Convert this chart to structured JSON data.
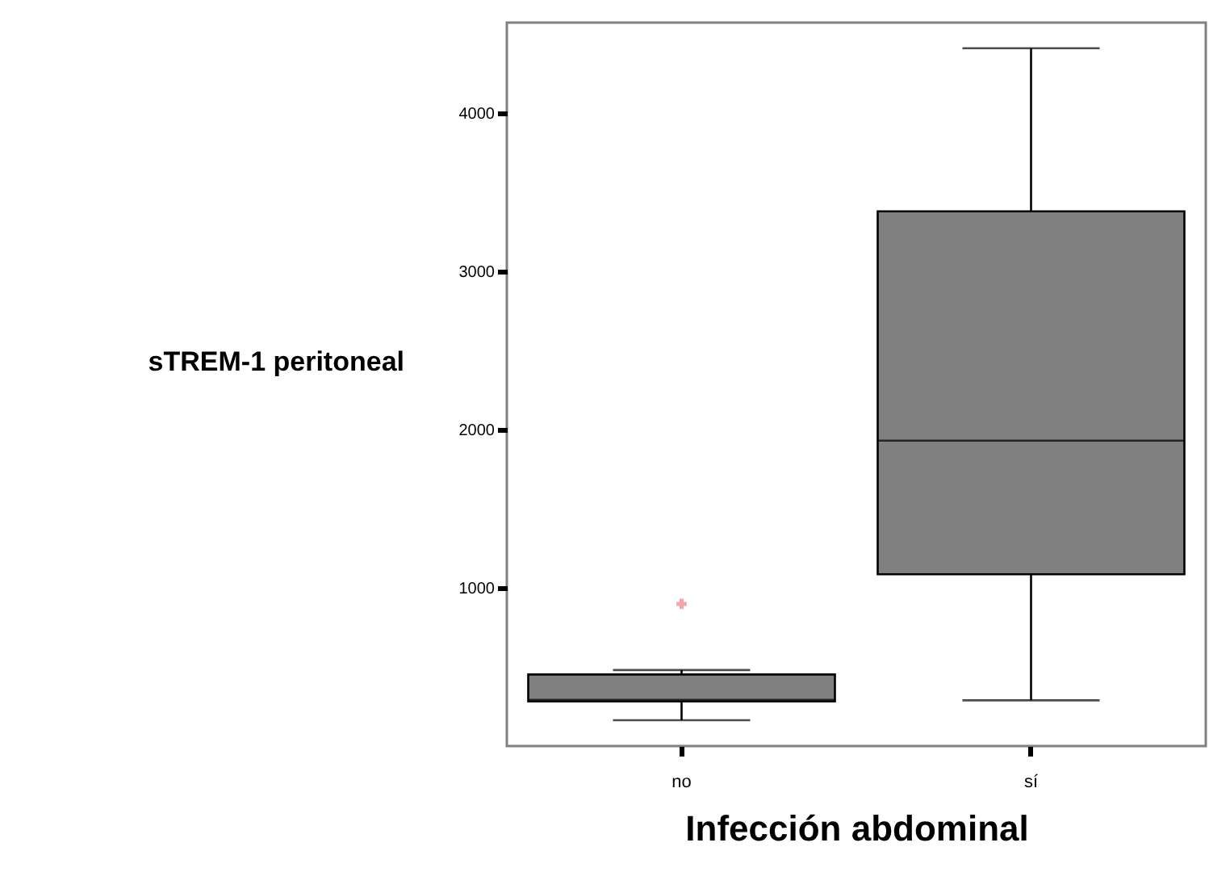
{
  "chart_data": {
    "type": "box",
    "xlabel": "Infección abdominal",
    "ylabel": "sTREM-1 peritoneal",
    "categories": [
      "no",
      "sí"
    ],
    "series": [
      {
        "color": "#808080",
        "boxes": [
          {
            "low": 163,
            "q1": 282,
            "median": 292,
            "q3": 452,
            "high": 480,
            "outliers": [
              898
            ]
          },
          {
            "low": 289,
            "q1": 1085,
            "median": 1929,
            "q3": 3378,
            "high": 4408
          }
        ]
      }
    ],
    "ylim": [
      0,
      4570
    ],
    "yticks": [
      1000,
      2000,
      3000,
      4000
    ]
  }
}
